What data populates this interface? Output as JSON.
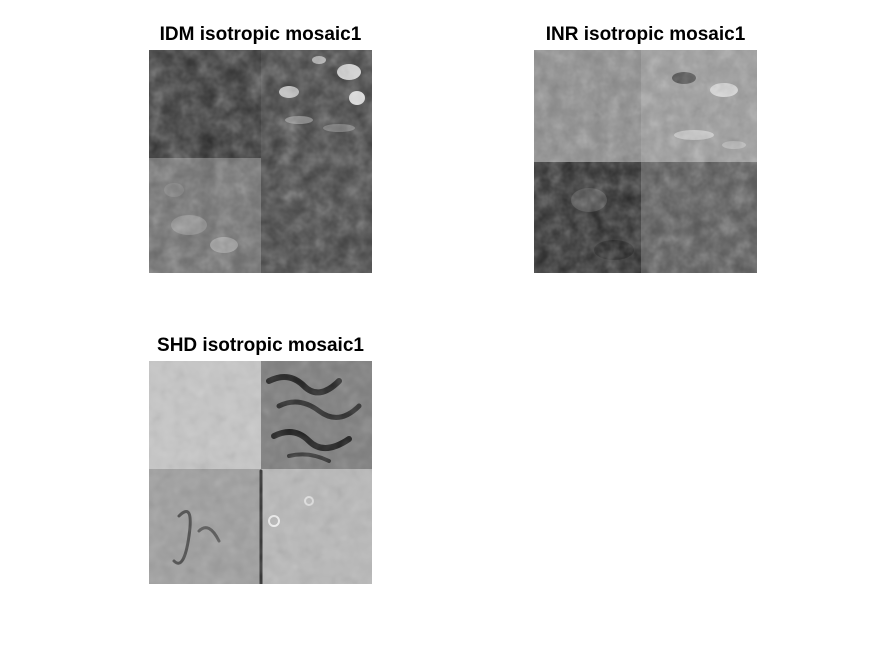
{
  "figure": {
    "panels": [
      {
        "key": "idm",
        "title": "IDM isotropic mosaic1",
        "quadrant_levels": [
          0.18,
          0.3,
          0.45,
          0.25
        ]
      },
      {
        "key": "inr",
        "title": "INR isotropic mosaic1",
        "quadrant_levels": [
          0.55,
          0.62,
          0.15,
          0.32
        ]
      },
      {
        "key": "shd",
        "title": "SHD isotropic mosaic1",
        "quadrant_levels": [
          0.78,
          0.45,
          0.62,
          0.72
        ]
      }
    ]
  }
}
